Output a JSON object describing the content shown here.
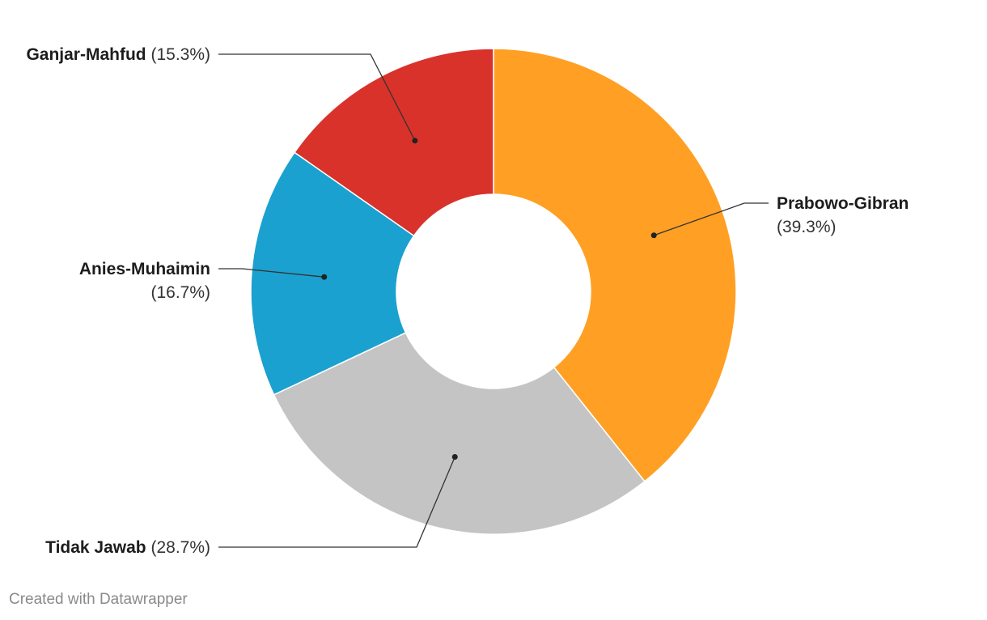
{
  "chart_data": {
    "type": "pie",
    "variant": "donut",
    "slices": [
      {
        "label": "Prabowo-Gibran",
        "value": 39.3,
        "value_text": "(39.3%)",
        "color": "#ffa024"
      },
      {
        "label": "Tidak Jawab",
        "value": 28.7,
        "value_text": "(28.7%)",
        "color": "#c4c4c4"
      },
      {
        "label": "Anies-Muhaimin",
        "value": 16.7,
        "value_text": "(16.7%)",
        "color": "#1ba1cf"
      },
      {
        "label": "Ganjar-Mahfud",
        "value": 15.3,
        "value_text": "(15.3%)",
        "color": "#d9322b"
      }
    ],
    "legend": "none"
  },
  "footer": {
    "credit": "Created with Datawrapper"
  }
}
